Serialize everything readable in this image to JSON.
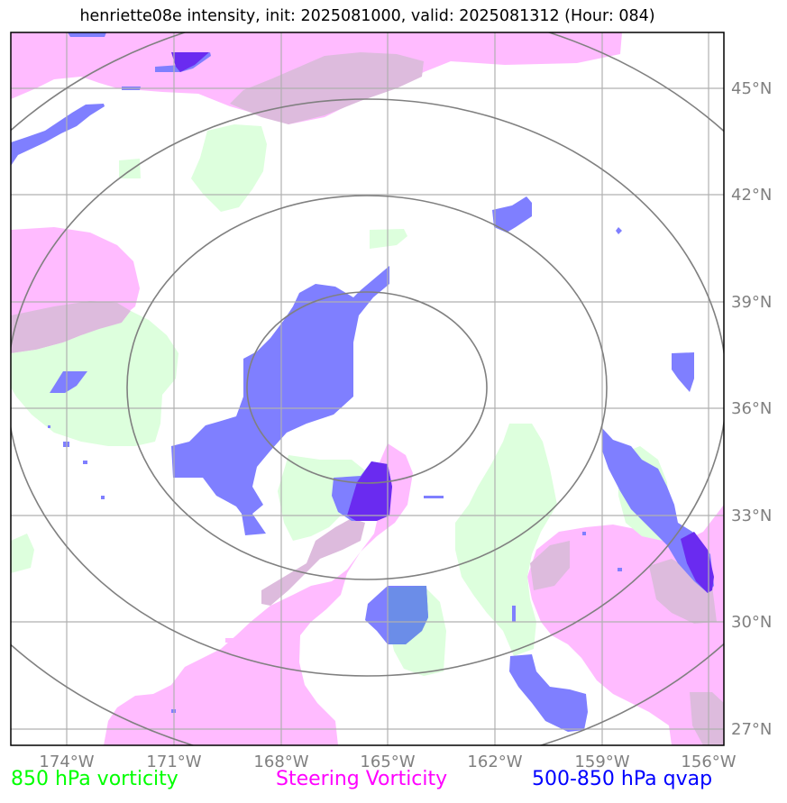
{
  "title": "henriette08e intensity, init: 2025081000, valid: 2025081312 (Hour: 084)",
  "x_ticks": [
    "174°W",
    "171°W",
    "168°W",
    "165°W",
    "162°W",
    "159°W",
    "156°W"
  ],
  "y_ticks": [
    "45°N",
    "42°N",
    "39°N",
    "36°N",
    "33°N",
    "30°N",
    "27°N"
  ],
  "legend": {
    "vorticity_850": {
      "label": "850 hPa vorticity",
      "color": "#00ff00"
    },
    "steering_vorticity": {
      "label": "Steering Vorticity",
      "color": "#ff00ff"
    },
    "qvap": {
      "label": "500-850 hPa qvap",
      "color": "#0000ff"
    }
  },
  "colors": {
    "vorticity_fill": "#ddffdd",
    "steering_fill": "#ffbbff",
    "overlap_fill": "#ddbbdd",
    "qvap_fill": "#7f7fff",
    "qvap_strong": "#6a2bf0",
    "rings": "#808080",
    "grid": "#b0b0b0"
  }
}
